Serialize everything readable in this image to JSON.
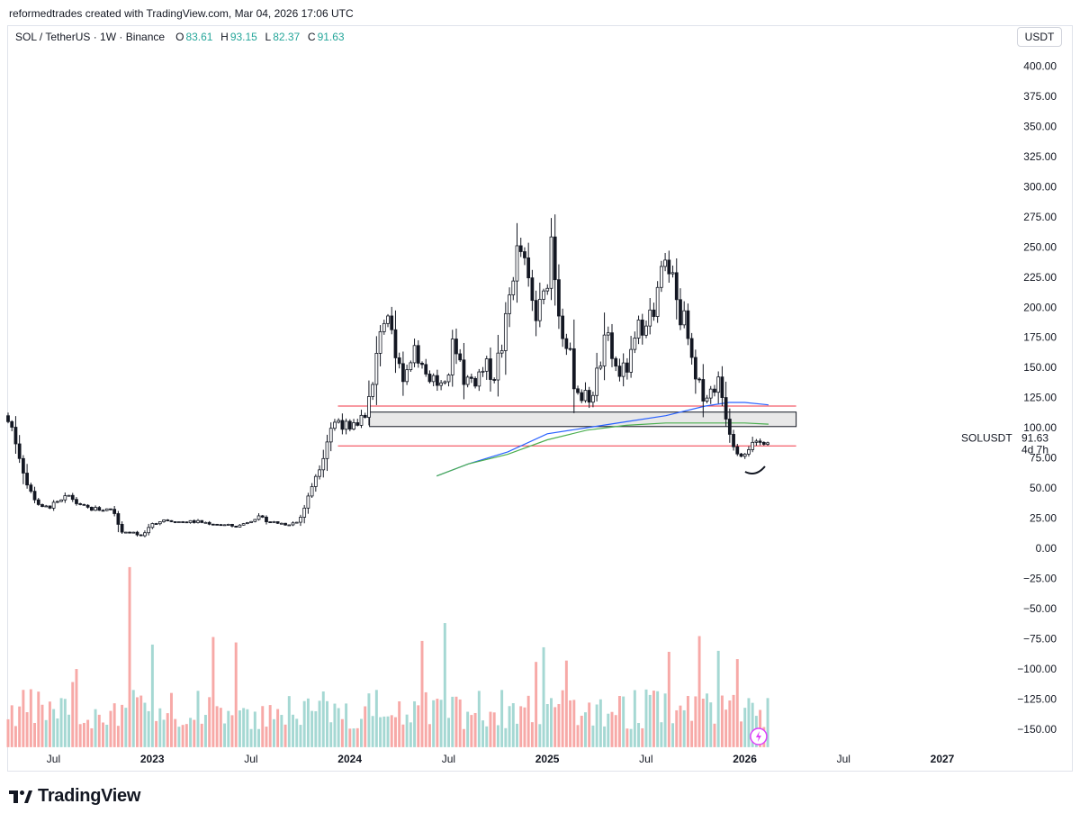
{
  "header": {
    "credit": "reformedtrades created with TradingView.com, Mar 04, 2026 17:06 UTC"
  },
  "legend": {
    "pair": "SOL / TetherUS · 1W · Binance",
    "open_label": "O",
    "open": "83.61",
    "high_label": "H",
    "high": "93.15",
    "low_label": "L",
    "low": "82.37",
    "close_label": "C",
    "close": "91.63"
  },
  "currency_button": "USDT",
  "price_tag": {
    "symbol": "SOLUSDT",
    "price": "91.63",
    "countdown": "4d 7h"
  },
  "footer": {
    "brand": "TradingView"
  },
  "colors": {
    "up": "#26a69a",
    "down": "#ef5350",
    "ma_blue": "#2962ff",
    "ma_green": "#4caf50",
    "level_red": "#f23645",
    "zone_fill": "#e8e8e8"
  },
  "chart_data": {
    "type": "candlestick",
    "title": "SOL / TetherUS · 1W · Binance",
    "y_axis": {
      "range": [
        -165,
        420
      ],
      "tick_labels": [
        "400.00",
        "375.00",
        "350.00",
        "325.00",
        "300.00",
        "275.00",
        "250.00",
        "225.00",
        "200.00",
        "175.00",
        "150.00",
        "125.00",
        "100.00",
        "75.00",
        "50.00",
        "25.00",
        "0.00",
        "−25.00",
        "−50.00",
        "−75.00",
        "−100.00",
        "−125.00",
        "−150.00"
      ],
      "tick_values": [
        400,
        375,
        350,
        325,
        300,
        275,
        250,
        225,
        200,
        175,
        150,
        125,
        100,
        75,
        50,
        25,
        0,
        -25,
        -50,
        -75,
        -100,
        -125,
        -150
      ]
    },
    "x_axis": {
      "tick_labels": [
        "Jul",
        "2023",
        "Jul",
        "2024",
        "Jul",
        "2025",
        "Jul",
        "2026",
        "Jul",
        "2027"
      ],
      "tick_times": [
        2022.5,
        2023.0,
        2023.5,
        2024.0,
        2024.5,
        2025.0,
        2025.5,
        2026.0,
        2026.5,
        2027.0
      ],
      "bold_ticks": [
        "2023",
        "2024",
        "2025",
        "2026",
        "2027"
      ],
      "range": [
        2022.27,
        2027.42
      ]
    },
    "price_series": {
      "name": "SOLUSDT weekly close (approx.)",
      "points": [
        [
          2022.27,
          110
        ],
        [
          2022.31,
          100
        ],
        [
          2022.35,
          75
        ],
        [
          2022.39,
          50
        ],
        [
          2022.43,
          40
        ],
        [
          2022.46,
          33
        ],
        [
          2022.5,
          35
        ],
        [
          2022.55,
          38
        ],
        [
          2022.6,
          44
        ],
        [
          2022.65,
          35
        ],
        [
          2022.7,
          33
        ],
        [
          2022.78,
          32
        ],
        [
          2022.82,
          33
        ],
        [
          2022.86,
          14
        ],
        [
          2022.92,
          13
        ],
        [
          2022.96,
          10
        ],
        [
          2023.02,
          20
        ],
        [
          2023.08,
          24
        ],
        [
          2023.15,
          22
        ],
        [
          2023.25,
          22
        ],
        [
          2023.35,
          20
        ],
        [
          2023.45,
          18
        ],
        [
          2023.55,
          26
        ],
        [
          2023.62,
          22
        ],
        [
          2023.7,
          20
        ],
        [
          2023.76,
          22
        ],
        [
          2023.8,
          38
        ],
        [
          2023.84,
          58
        ],
        [
          2023.88,
          75
        ],
        [
          2023.92,
          100
        ],
        [
          2023.97,
          108
        ],
        [
          2024.02,
          95
        ],
        [
          2024.06,
          105
        ],
        [
          2024.1,
          115
        ],
        [
          2024.14,
          135
        ],
        [
          2024.18,
          195
        ],
        [
          2024.22,
          180
        ],
        [
          2024.26,
          150
        ],
        [
          2024.3,
          145
        ],
        [
          2024.35,
          170
        ],
        [
          2024.4,
          145
        ],
        [
          2024.45,
          140
        ],
        [
          2024.5,
          130
        ],
        [
          2024.55,
          175
        ],
        [
          2024.6,
          140
        ],
        [
          2024.65,
          140
        ],
        [
          2024.7,
          150
        ],
        [
          2024.75,
          145
        ],
        [
          2024.8,
          175
        ],
        [
          2024.85,
          235
        ],
        [
          2024.88,
          250
        ],
        [
          2024.92,
          220
        ],
        [
          2024.96,
          190
        ],
        [
          2025.01,
          210
        ],
        [
          2025.04,
          260
        ],
        [
          2025.08,
          195
        ],
        [
          2025.12,
          170
        ],
        [
          2025.16,
          135
        ],
        [
          2025.2,
          125
        ],
        [
          2025.24,
          125
        ],
        [
          2025.28,
          150
        ],
        [
          2025.32,
          175
        ],
        [
          2025.36,
          150
        ],
        [
          2025.4,
          145
        ],
        [
          2025.44,
          155
        ],
        [
          2025.48,
          180
        ],
        [
          2025.52,
          195
        ],
        [
          2025.56,
          190
        ],
        [
          2025.6,
          230
        ],
        [
          2025.64,
          235
        ],
        [
          2025.68,
          200
        ],
        [
          2025.72,
          185
        ],
        [
          2025.76,
          140
        ],
        [
          2025.8,
          130
        ],
        [
          2025.84,
          128
        ],
        [
          2025.88,
          140
        ],
        [
          2025.9,
          130
        ],
        [
          2025.94,
          100
        ],
        [
          2025.97,
          85
        ],
        [
          2026.0,
          80
        ],
        [
          2026.04,
          85
        ],
        [
          2026.08,
          84
        ],
        [
          2026.12,
          91.63
        ]
      ],
      "last_close": 91.63
    },
    "moving_averages": [
      {
        "name": "Blue MA",
        "points": [
          [
            2024.44,
            60
          ],
          [
            2024.6,
            70
          ],
          [
            2024.8,
            80
          ],
          [
            2025.0,
            95
          ],
          [
            2025.2,
            100
          ],
          [
            2025.4,
            105
          ],
          [
            2025.6,
            110
          ],
          [
            2025.8,
            118
          ],
          [
            2025.92,
            121
          ],
          [
            2026.0,
            121
          ],
          [
            2026.12,
            119
          ]
        ]
      },
      {
        "name": "Green MA",
        "points": [
          [
            2024.44,
            60
          ],
          [
            2024.6,
            70
          ],
          [
            2024.8,
            78
          ],
          [
            2025.0,
            90
          ],
          [
            2025.2,
            98
          ],
          [
            2025.4,
            102
          ],
          [
            2025.6,
            104
          ],
          [
            2025.8,
            104
          ],
          [
            2025.92,
            104
          ],
          [
            2026.0,
            104
          ],
          [
            2026.12,
            103
          ]
        ]
      }
    ],
    "horizontal_levels": [
      {
        "name": "resistance line",
        "value": 118,
        "from": 2023.94,
        "to": 2026.26
      },
      {
        "name": "support line",
        "value": 85,
        "from": 2023.94,
        "to": 2026.26
      }
    ],
    "zones": [
      {
        "name": "gray zone",
        "low": 101,
        "high": 113,
        "from": 2024.1,
        "to": 2026.26
      }
    ],
    "volume": {
      "name": "Volume",
      "style": "histogram, green/red by candle direction",
      "highest_bar_date": 2022.88
    }
  }
}
